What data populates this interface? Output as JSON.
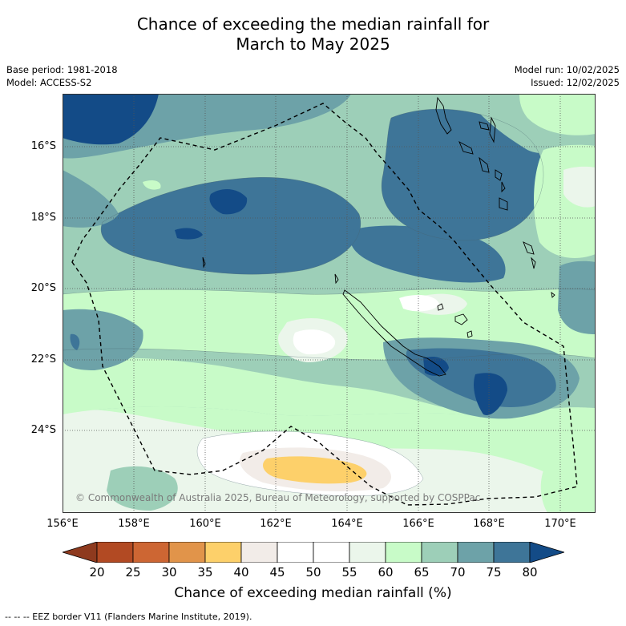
{
  "title_line1": "Chance of exceeding the median rainfall for",
  "title_line2": "March to May 2025",
  "base_period": "Base period: 1981-2018",
  "model": "Model: ACCESS-S2",
  "model_run": "Model run: 10/02/2025",
  "issued": "Issued: 12/02/2025",
  "lat_labels": [
    "16°S",
    "18°S",
    "20°S",
    "22°S",
    "24°S"
  ],
  "lon_labels": [
    "156°E",
    "158°E",
    "160°E",
    "162°E",
    "164°E",
    "166°E",
    "168°E",
    "170°E"
  ],
  "copyright": "© Commonwealth of Australia 2025, Bureau of Meteorology, supported by COSPPac",
  "colorbar": {
    "ticks": [
      "20",
      "25",
      "30",
      "35",
      "40",
      "45",
      "50",
      "55",
      "60",
      "65",
      "70",
      "75",
      "80"
    ],
    "colors": [
      "#8e3a1e",
      "#b24a23",
      "#cd6633",
      "#e1944a",
      "#fdd06a",
      "#f2ece8",
      "#ffffff",
      "#ffffff",
      "#ebf6eb",
      "#c8fbc8",
      "#9dcfb8",
      "#6da2a8",
      "#3e7598",
      "#134b87"
    ],
    "title": "Chance of exceeding median rainfall (%)"
  },
  "footnote": "--  --  -- EEZ border V11 (Flanders Marine Institute, 2019)."
}
